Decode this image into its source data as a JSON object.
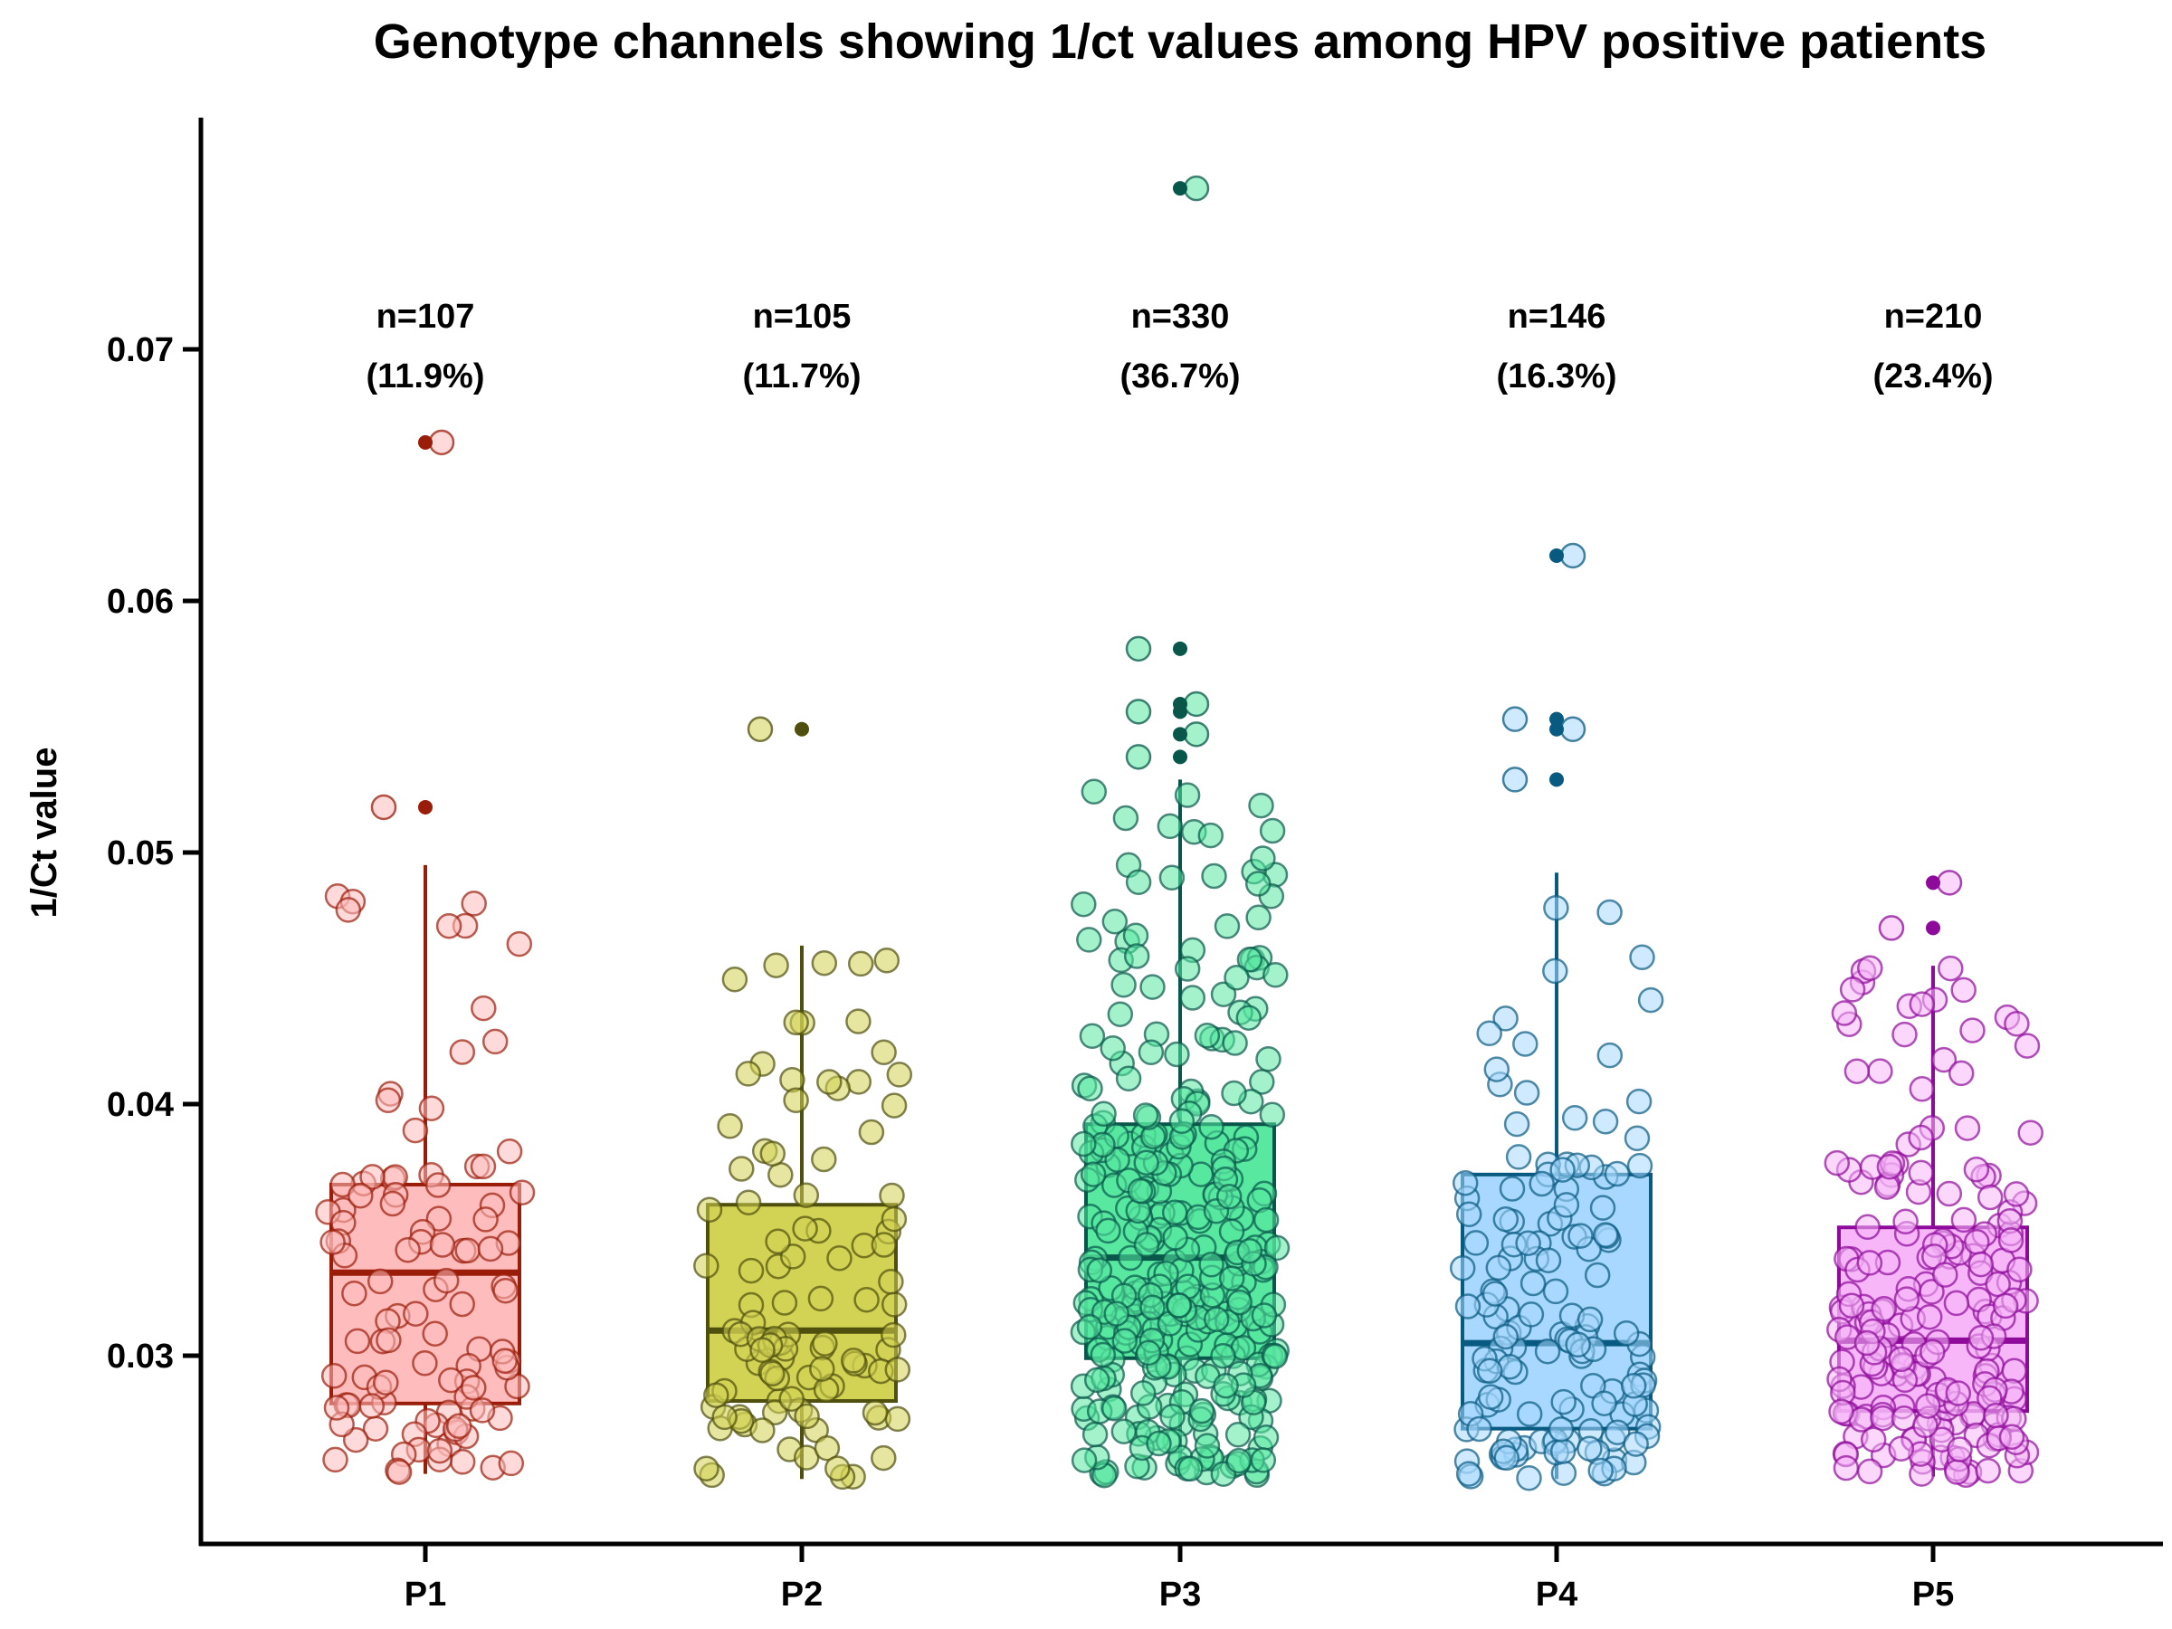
{
  "chart_data": {
    "type": "box",
    "title": "Genotype channels showing 1/ct values among HPV positive patients",
    "xlabel": "",
    "ylabel": "1/Ct value",
    "ylim": [
      0.0225,
      0.0785
    ],
    "yticks": [
      0.03,
      0.04,
      0.05,
      0.06,
      0.07
    ],
    "ytick_labels": [
      "0.03",
      "0.04",
      "0.05",
      "0.06",
      "0.07"
    ],
    "grid": false,
    "categories": [
      "P1",
      "P2",
      "P3",
      "P4",
      "P5"
    ],
    "groups": [
      {
        "category": "P1",
        "n_label": "n=107",
        "pct_label": "(11.9%)",
        "n": 107,
        "q1": 0.0281,
        "median": 0.0333,
        "q3": 0.0368,
        "whisker_low": 0.0253,
        "whisker_high": 0.0495,
        "outliers": [
          0.0518,
          0.0663
        ],
        "fill": "#ffbcbc",
        "stroke": "#9a1d0a"
      },
      {
        "category": "P2",
        "n_label": "n=105",
        "pct_label": "(11.7%)",
        "n": 105,
        "q1": 0.0282,
        "median": 0.031,
        "q3": 0.036,
        "whisker_low": 0.0251,
        "whisker_high": 0.0463,
        "outliers": [
          0.0549
        ],
        "fill": "#d2d254",
        "stroke": "#4f4f0e"
      },
      {
        "category": "P3",
        "n_label": "n=330",
        "pct_label": "(36.7%)",
        "n": 330,
        "q1": 0.0299,
        "median": 0.0339,
        "q3": 0.0392,
        "whisker_low": 0.0252,
        "whisker_high": 0.0529,
        "outliers": [
          0.0538,
          0.0547,
          0.0556,
          0.0559,
          0.0581,
          0.0764
        ],
        "fill": "#58e8a0",
        "stroke": "#08574a"
      },
      {
        "category": "P4",
        "n_label": "n=146",
        "pct_label": "(16.3%)",
        "n": 146,
        "q1": 0.0271,
        "median": 0.0305,
        "q3": 0.0372,
        "whisker_low": 0.0251,
        "whisker_high": 0.0492,
        "outliers": [
          0.0529,
          0.0549,
          0.0553,
          0.0618
        ],
        "fill": "#a8d8ff",
        "stroke": "#085a80"
      },
      {
        "category": "P5",
        "n_label": "n=210",
        "pct_label": "(23.4%)",
        "n": 210,
        "q1": 0.0278,
        "median": 0.0306,
        "q3": 0.0351,
        "whisker_low": 0.0252,
        "whisker_high": 0.0455,
        "outliers": [
          0.047,
          0.0488
        ],
        "fill": "#f6b6f8",
        "stroke": "#8e0a9a"
      }
    ]
  }
}
